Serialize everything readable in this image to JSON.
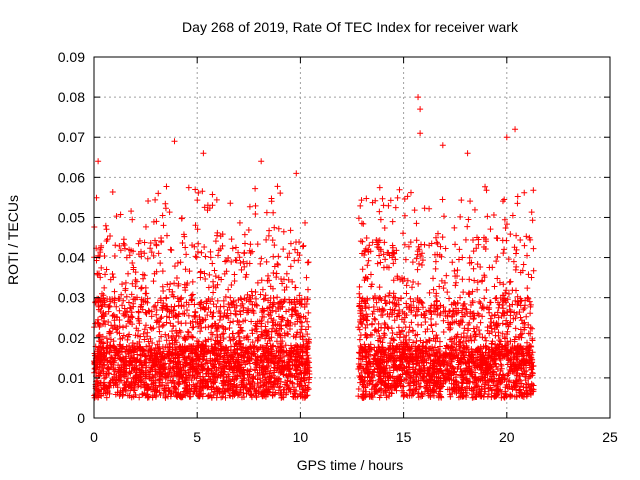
{
  "chart_data": {
    "type": "scatter",
    "title": "Day 268 of 2019, Rate Of TEC Index for receiver wark",
    "xlabel": "GPS time / hours",
    "ylabel": "ROTI / TECUs",
    "xlim": [
      0,
      25
    ],
    "ylim": [
      0,
      0.09
    ],
    "xticks": [
      "0",
      "5",
      "10",
      "15",
      "20",
      "25"
    ],
    "yticks": [
      "0",
      "0.01",
      "0.02",
      "0.03",
      "0.04",
      "0.05",
      "0.06",
      "0.07",
      "0.08",
      "0.09"
    ],
    "grid": true,
    "marker": "+",
    "color": "#ff0000",
    "data_segments": [
      {
        "x_start": 0.0,
        "x_end": 10.45
      },
      {
        "x_start": 12.8,
        "x_end": 21.3
      }
    ],
    "notable_points": [
      {
        "x": 0.2,
        "y": 0.064
      },
      {
        "x": 3.9,
        "y": 0.069
      },
      {
        "x": 5.3,
        "y": 0.066
      },
      {
        "x": 8.1,
        "y": 0.064
      },
      {
        "x": 9.8,
        "y": 0.061
      },
      {
        "x": 15.7,
        "y": 0.08
      },
      {
        "x": 15.8,
        "y": 0.077
      },
      {
        "x": 15.8,
        "y": 0.071
      },
      {
        "x": 16.9,
        "y": 0.068
      },
      {
        "x": 18.1,
        "y": 0.066
      },
      {
        "x": 20.0,
        "y": 0.07
      },
      {
        "x": 20.4,
        "y": 0.072
      }
    ]
  }
}
